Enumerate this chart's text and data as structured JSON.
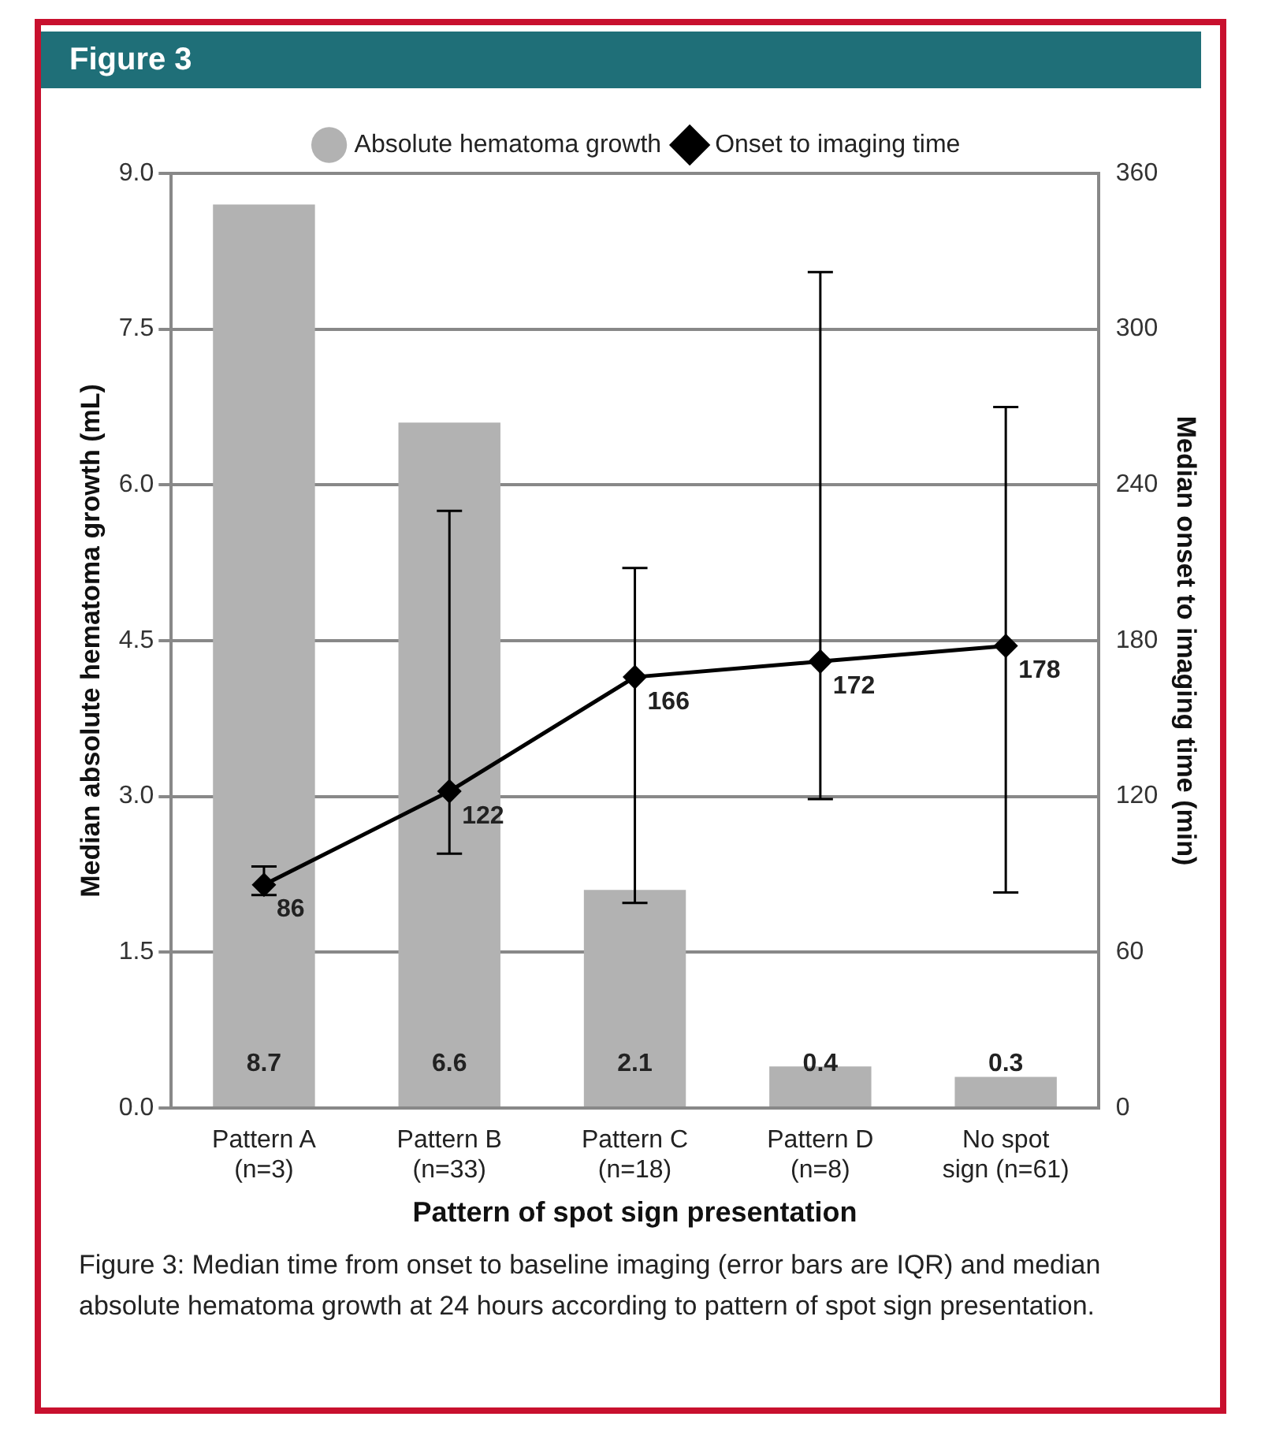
{
  "chart_data": {
    "type": "bar",
    "title": "Figure 3",
    "xlabel": "Pattern of spot sign presentation",
    "ylabel": "Median absolute hematoma growth (mL)",
    "y2label": "Median onset to imaging time (min)",
    "categories": [
      "Pattern A\n(n=3)",
      "Pattern B\n(n=33)",
      "Pattern C\n(n=18)",
      "Pattern D\n(n=8)",
      "No spot\nsign (n=61)"
    ],
    "series": [
      {
        "name": "Absolute hematoma growth",
        "color": "#b2b2b2",
        "values": [
          8.7,
          6.6,
          2.1,
          0.4,
          0.3
        ]
      },
      {
        "name": "Onset to imaging time",
        "type": "line",
        "axis": "y2",
        "color": "#000000",
        "values": [
          86,
          122,
          166,
          172,
          178
        ],
        "errors": [
          [
            82,
            93
          ],
          [
            98,
            230
          ],
          [
            79,
            208
          ],
          [
            119,
            322
          ],
          [
            83,
            270
          ]
        ]
      }
    ],
    "ylim": [
      0,
      9
    ],
    "yticks": [
      {
        "value": 0,
        "label": "0.0"
      },
      1.5,
      {
        "value": 3,
        "label": "3.0"
      },
      4.5,
      {
        "value": 6,
        "label": "6.0"
      },
      7.5,
      {
        "value": 9,
        "label": "9.0"
      }
    ],
    "y2lim": [
      0,
      360
    ],
    "y2ticks": [
      0,
      60,
      120,
      180,
      240,
      300,
      360
    ],
    "grid": "y",
    "legend": "top",
    "marker": "diamond",
    "line_style": "solid",
    "data_labels": true,
    "annotations": [
      "Figure 3:    Median time from onset to baseline imaging (error bars are IQR) and median absolute hematoma growth at 24 hours according to pattern of spot sign presentation."
    ]
  }
}
